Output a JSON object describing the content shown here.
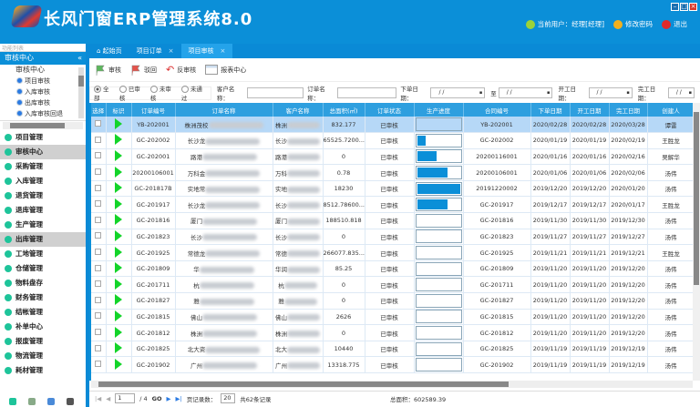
{
  "app": {
    "title": "长风门窗ERP管理系统8.0"
  },
  "user": {
    "current": "当前用户：经理[经理]",
    "change_password": "修改密码",
    "logout": "退出"
  },
  "sidebar": {
    "search_placeholder": "功能列表",
    "section": "审核中心",
    "tree_root": "审核中心",
    "tree_items": [
      "项目审核",
      "入库审核",
      "出库审核",
      "入库审核回退"
    ],
    "items": [
      {
        "label": "项目管理",
        "sel": false
      },
      {
        "label": "审核中心",
        "sel": true
      },
      {
        "label": "采购管理",
        "sel": false
      },
      {
        "label": "入库管理",
        "sel": false
      },
      {
        "label": "退货管理",
        "sel": false
      },
      {
        "label": "退库管理",
        "sel": false
      },
      {
        "label": "生产管理",
        "sel": false
      },
      {
        "label": "出库管理",
        "sel": true
      },
      {
        "label": "工地管理",
        "sel": false
      },
      {
        "label": "仓储管理",
        "sel": false
      },
      {
        "label": "物料盘存",
        "sel": false
      },
      {
        "label": "财务管理",
        "sel": false
      },
      {
        "label": "结帐管理",
        "sel": false
      },
      {
        "label": "补单中心",
        "sel": false
      },
      {
        "label": "报废管理",
        "sel": false
      },
      {
        "label": "物流管理",
        "sel": false
      },
      {
        "label": "耗材管理",
        "sel": false
      }
    ]
  },
  "tabs": [
    {
      "label": "起始页"
    },
    {
      "label": "项目订单"
    },
    {
      "label": "项目审核",
      "active": true
    }
  ],
  "toolbar": {
    "approve": "审核",
    "reject": "驳回",
    "unapprove": "反审核",
    "report": "报表中心"
  },
  "filter": {
    "radios": [
      "全部",
      "已审核",
      "未审核",
      "未通过"
    ],
    "selected": "全部",
    "customer_label": "客户名称：",
    "order_label": "订单名称：",
    "order_date_label": "下单日期：",
    "to_label": "至",
    "start_date_label": "开工日期：",
    "finish_date_label": "完工日期：",
    "date_placeholder": "/  /"
  },
  "table": {
    "headers": [
      "选择",
      "标识",
      "订单编号",
      "订单名称",
      "客户名称",
      "总面积(㎡)",
      "订单状态",
      "生产进度",
      "合同编号",
      "下单日期",
      "开工日期",
      "完工日期",
      "创建人"
    ],
    "rows": [
      [
        "YB-202001",
        "株洲茂校",
        "株洲",
        "832.177",
        "已审核",
        0,
        "YB-202001",
        "2020/02/28",
        "2020/02/28",
        "2020/03/28",
        "谭雷"
      ],
      [
        "GC-202002",
        "长沙龙",
        "长沙",
        "65525.7200...",
        "已审核",
        20,
        "GC-202002",
        "2020/01/19",
        "2020/01/19",
        "2020/02/19",
        "王胜龙"
      ],
      [
        "GC-202001",
        "路港",
        "路港",
        "0",
        "已审核",
        45,
        "20200116001",
        "2020/01/16",
        "2020/01/16",
        "2020/02/16",
        "吴解华"
      ],
      [
        "20200106001",
        "万科金",
        "万科",
        "0.78",
        "已审核",
        72,
        "20200106001",
        "2020/01/06",
        "2020/01/06",
        "2020/02/06",
        "汤伟"
      ],
      [
        "GC-201817B",
        "实地常",
        "实地",
        "18230",
        "已审核",
        100,
        "20191220002",
        "2019/12/20",
        "2019/12/20",
        "2020/01/20",
        "汤伟"
      ],
      [
        "GC-201917",
        "长沙龙",
        "长沙",
        "8512.78600...",
        "已审核",
        72,
        "GC-201917",
        "2019/12/17",
        "2019/12/17",
        "2020/01/17",
        "王胜龙"
      ],
      [
        "GC-201816",
        "厦门",
        "厦门",
        "188510.818",
        "已审核",
        0,
        "GC-201816",
        "2019/11/30",
        "2019/11/30",
        "2019/12/30",
        "汤伟"
      ],
      [
        "GC-201823",
        "长沙",
        "长沙",
        "0",
        "已审核",
        0,
        "GC-201823",
        "2019/11/27",
        "2019/11/27",
        "2019/12/27",
        "汤伟"
      ],
      [
        "GC-201925",
        "常德龙",
        "常德",
        "266077.835...",
        "已审核",
        0,
        "GC-201925",
        "2019/11/21",
        "2019/11/21",
        "2019/12/21",
        "王胜龙"
      ],
      [
        "GC-201809",
        "华",
        "华润",
        "85.25",
        "已审核",
        0,
        "GC-201809",
        "2019/11/20",
        "2019/11/20",
        "2019/12/20",
        "汤伟"
      ],
      [
        "GC-201711",
        "杭",
        "杭",
        "0",
        "已审核",
        0,
        "GC-201711",
        "2019/11/20",
        "2019/11/20",
        "2019/12/20",
        "汤伟"
      ],
      [
        "GC-201827",
        "雅",
        "雅",
        "0",
        "已审核",
        0,
        "GC-201827",
        "2019/11/20",
        "2019/11/20",
        "2019/12/20",
        "汤伟"
      ],
      [
        "GC-201815",
        "佛山",
        "佛山",
        "2626",
        "已审核",
        0,
        "GC-201815",
        "2019/11/20",
        "2019/11/20",
        "2019/12/20",
        "汤伟"
      ],
      [
        "GC-201812",
        "株洲",
        "株洲",
        "0",
        "已审核",
        0,
        "GC-201812",
        "2019/11/20",
        "2019/11/20",
        "2019/12/20",
        "汤伟"
      ],
      [
        "GC-201825",
        "北大资",
        "北大",
        "10440",
        "已审核",
        0,
        "GC-201825",
        "2019/11/19",
        "2019/11/19",
        "2019/12/19",
        "汤伟"
      ],
      [
        "GC-201902",
        "广州",
        "广州",
        "13318.775",
        "已审核",
        0,
        "GC-201902",
        "2019/11/19",
        "2019/11/19",
        "2019/12/19",
        "汤伟"
      ]
    ]
  },
  "pager": {
    "page": "1",
    "total_pages": "/ 4",
    "go": "GO",
    "page_size_label": "页记录数：",
    "page_size": "20",
    "total": "共62条记录",
    "total_area": "总面积：602589.39"
  },
  "colors": {
    "brand": "#0b8fd8",
    "progress": "#0b8fd8",
    "flag": "#14d42a"
  }
}
